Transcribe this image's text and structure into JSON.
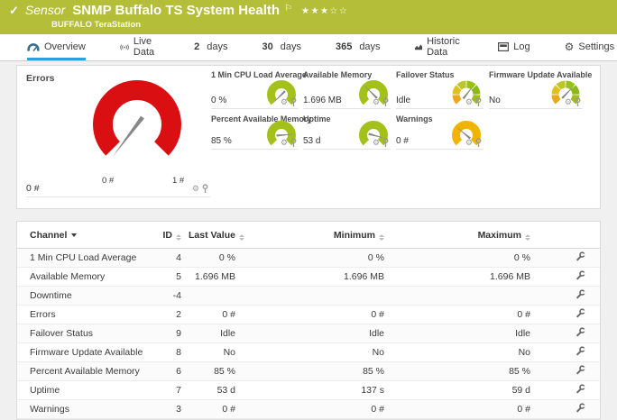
{
  "header": {
    "status_check": "✓",
    "type_label": "Sensor",
    "title": "SNMP Buffalo TS System Health",
    "flag": "⚐",
    "stars": "★★★☆☆",
    "device_name": "BUFFALO TeraStation",
    "bg_color": "#b4be39"
  },
  "tabs": [
    {
      "label": "Overview",
      "active": true
    },
    {
      "label": "Live Data"
    },
    {
      "num": "2",
      "word": "days"
    },
    {
      "num": "30",
      "word": "days"
    },
    {
      "num": "365",
      "word": "days"
    },
    {
      "label": "Historic Data"
    },
    {
      "label": "Log"
    },
    {
      "label": "Settings"
    }
  ],
  "gauges": {
    "main": {
      "label": "Errors",
      "value": "0 #",
      "scale_min": "0 #",
      "scale_max": "1 #",
      "color": "#d90f12",
      "needle_deg": -143
    },
    "mini": [
      {
        "label": "1 Min CPU Load Average",
        "value": "0 %",
        "color": "#a4c11b",
        "needle_deg": -135
      },
      {
        "label": "Available Memory",
        "value": "1.696 MB",
        "color": "#a4c11b",
        "needle_deg": -45
      },
      {
        "label": "Failover Status",
        "value": "Idle",
        "segment_colors": [
          "#eba81c",
          "#ddc222",
          "#bcc824",
          "#98c11d",
          "#8abb14",
          "#a4bb1f"
        ],
        "needle_deg": 38
      },
      {
        "label": "Firmware Update Available",
        "value": "No",
        "segment_colors": [
          "#eba81c",
          "#ddc222",
          "#bcc824",
          "#98c11d",
          "#8abb14",
          "#a4bb1f"
        ],
        "needle_deg": 44
      },
      {
        "label": "Percent Available Memory",
        "value": "85 %",
        "color": "#a4c11b",
        "needle_deg": 85
      },
      {
        "label": "Uptime",
        "value": "53 d",
        "color": "#a4c11b",
        "needle_deg": 105
      },
      {
        "label": "Warnings",
        "value": "0 #",
        "color": "#f0b400",
        "needle_deg": -50
      }
    ],
    "needle_color": "#878787"
  },
  "table": {
    "columns": [
      "Channel",
      "ID",
      "Last Value",
      "Minimum",
      "Maximum"
    ],
    "sorted_by": "Channel",
    "rows": [
      {
        "channel": "1 Min CPU Load Average",
        "id": "4",
        "last": "0 %",
        "min": "0 %",
        "max": "0 %"
      },
      {
        "channel": "Available Memory",
        "id": "5",
        "last": "1.696 MB",
        "min": "1.696 MB",
        "max": "1.696 MB"
      },
      {
        "channel": "Downtime",
        "id": "-4",
        "last": "",
        "min": "",
        "max": ""
      },
      {
        "channel": "Errors",
        "id": "2",
        "last": "0 #",
        "min": "0 #",
        "max": "0 #"
      },
      {
        "channel": "Failover Status",
        "id": "9",
        "last": "Idle",
        "min": "Idle",
        "max": "Idle"
      },
      {
        "channel": "Firmware Update Available",
        "id": "8",
        "last": "No",
        "min": "No",
        "max": "No"
      },
      {
        "channel": "Percent Available Memory",
        "id": "6",
        "last": "85 %",
        "min": "85 %",
        "max": "85 %"
      },
      {
        "channel": "Uptime",
        "id": "7",
        "last": "53 d",
        "min": "137 s",
        "max": "59 d"
      },
      {
        "channel": "Warnings",
        "id": "3",
        "last": "0 #",
        "min": "0 #",
        "max": "0 #"
      }
    ]
  }
}
